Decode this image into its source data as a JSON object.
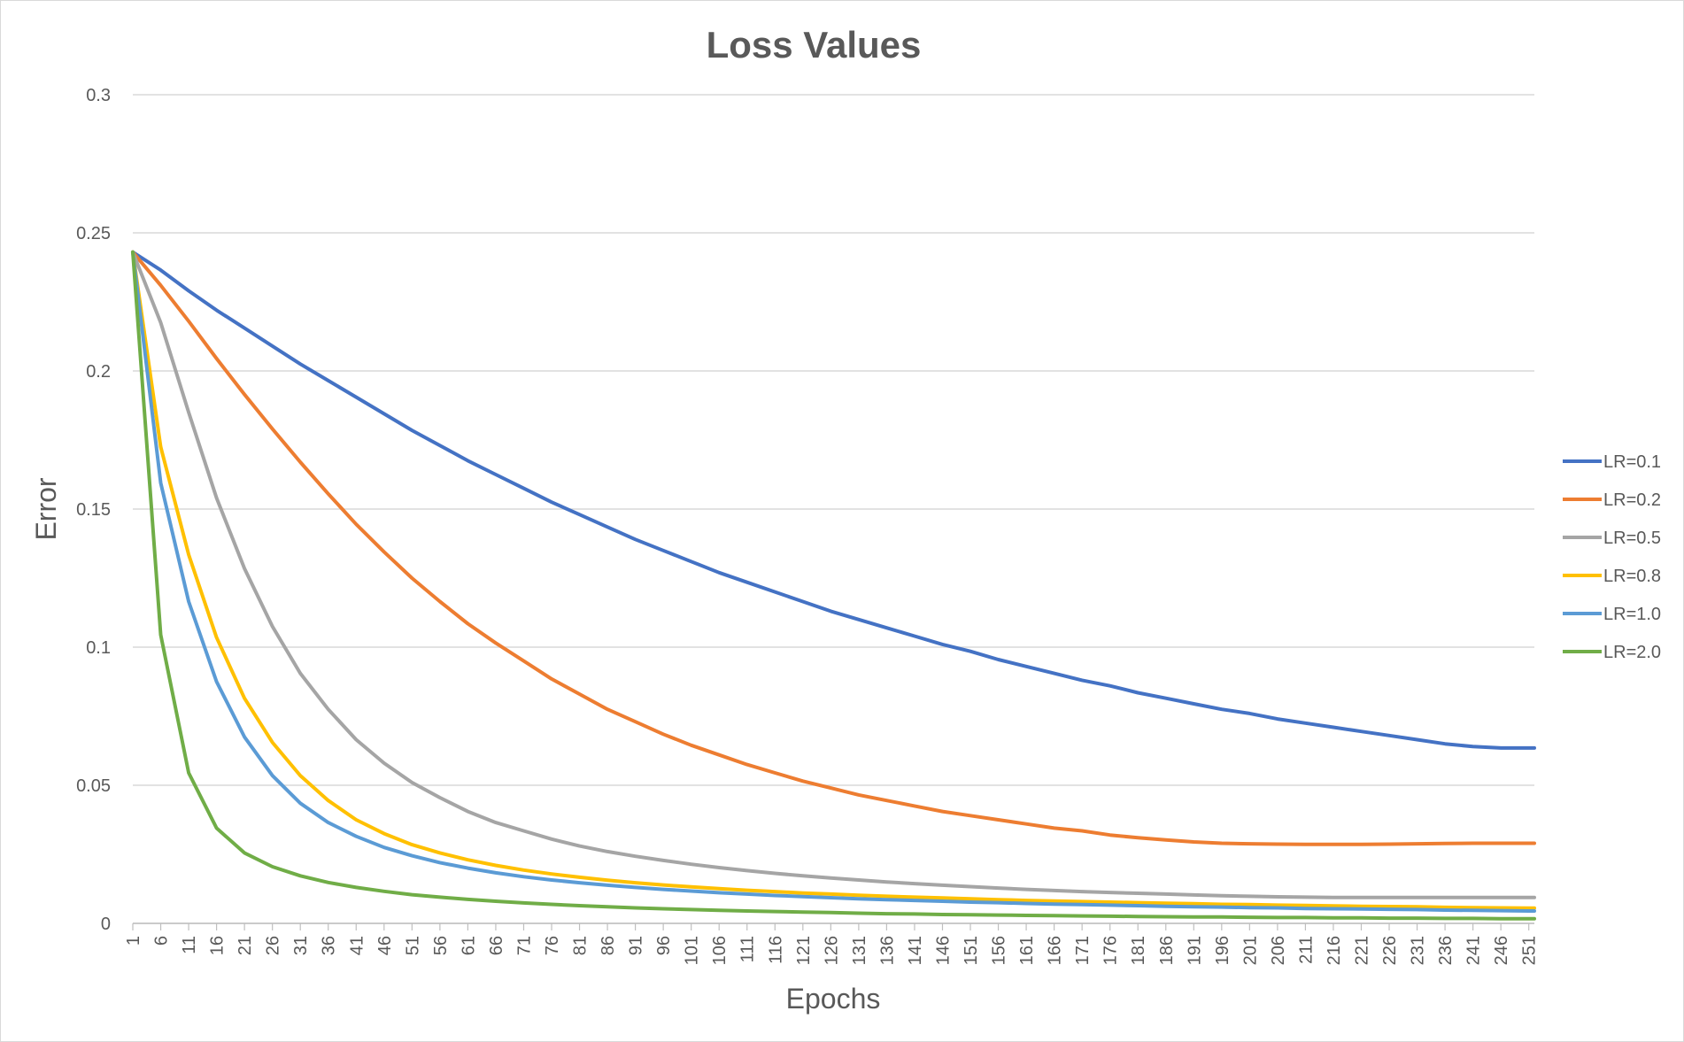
{
  "chart_data": {
    "type": "line",
    "title": "Loss Values",
    "xlabel": "Epochs",
    "ylabel": "Error",
    "ylim": [
      0,
      0.3
    ],
    "yticks": [
      0,
      0.05,
      0.1,
      0.15,
      0.2,
      0.25,
      0.3
    ],
    "ytick_labels": [
      "0",
      "0.05",
      "0.1",
      "0.15",
      "0.2",
      "0.25",
      "0.3"
    ],
    "x_start": 1,
    "x_end": 252,
    "x_tick_step": 5,
    "x_tick_labels": [
      "1",
      "6",
      "11",
      "16",
      "21",
      "26",
      "31",
      "36",
      "41",
      "46",
      "51",
      "56",
      "61",
      "66",
      "71",
      "76",
      "81",
      "86",
      "91",
      "96",
      "101",
      "106",
      "111",
      "116",
      "121",
      "126",
      "131",
      "136",
      "141",
      "146",
      "151",
      "156",
      "161",
      "166",
      "171",
      "176",
      "181",
      "186",
      "191",
      "196",
      "201",
      "206",
      "211",
      "216",
      "221",
      "226",
      "231",
      "236",
      "241",
      "246",
      "251"
    ],
    "grid": "horizontal",
    "legend_position": "right",
    "x": [
      1,
      6,
      11,
      16,
      21,
      26,
      31,
      36,
      41,
      46,
      51,
      56,
      61,
      66,
      71,
      76,
      81,
      86,
      91,
      96,
      101,
      106,
      111,
      116,
      121,
      126,
      131,
      136,
      141,
      146,
      151,
      156,
      161,
      166,
      171,
      176,
      181,
      186,
      191,
      196,
      201,
      206,
      211,
      216,
      221,
      226,
      231,
      236,
      241,
      246,
      251,
      252
    ],
    "series": [
      {
        "name": "LR=0.1",
        "color": "#4472c4",
        "values": [
          0.243,
          0.2365,
          0.229,
          0.222,
          0.2155,
          0.209,
          0.2025,
          0.1965,
          0.1905,
          0.1845,
          0.1785,
          0.173,
          0.1675,
          0.1625,
          0.1575,
          0.1525,
          0.148,
          0.1435,
          0.139,
          0.135,
          0.131,
          0.127,
          0.1235,
          0.12,
          0.1165,
          0.113,
          0.11,
          0.107,
          0.104,
          0.101,
          0.0985,
          0.0955,
          0.093,
          0.0905,
          0.088,
          0.086,
          0.0835,
          0.0815,
          0.0795,
          0.0775,
          0.076,
          0.074,
          0.0725,
          0.071,
          0.0695,
          0.068,
          0.0665,
          0.065,
          0.064,
          0.0635,
          0.0635,
          0.0635
        ]
      },
      {
        "name": "LR=0.2",
        "color": "#ed7d31",
        "values": [
          0.243,
          0.231,
          0.218,
          0.2045,
          0.1915,
          0.179,
          0.167,
          0.1555,
          0.1445,
          0.1345,
          0.125,
          0.1165,
          0.1085,
          0.1015,
          0.095,
          0.0885,
          0.083,
          0.0775,
          0.073,
          0.0685,
          0.0645,
          0.061,
          0.0575,
          0.0545,
          0.0515,
          0.049,
          0.0465,
          0.0445,
          0.0425,
          0.0405,
          0.039,
          0.0375,
          0.036,
          0.0345,
          0.0335,
          0.032,
          0.031,
          0.0302,
          0.0295,
          0.029,
          0.0288,
          0.0287,
          0.0286,
          0.0286,
          0.0286,
          0.0287,
          0.0288,
          0.0289,
          0.029,
          0.029,
          0.029,
          0.029
        ]
      },
      {
        "name": "LR=0.5",
        "color": "#a5a5a5",
        "values": [
          0.243,
          0.2175,
          0.185,
          0.154,
          0.1285,
          0.1075,
          0.0905,
          0.0775,
          0.0665,
          0.058,
          0.051,
          0.0455,
          0.0405,
          0.0365,
          0.0335,
          0.0305,
          0.028,
          0.026,
          0.0243,
          0.0228,
          0.0214,
          0.0202,
          0.0191,
          0.0181,
          0.0172,
          0.0164,
          0.0157,
          0.015,
          0.0144,
          0.0138,
          0.0133,
          0.0128,
          0.0123,
          0.0119,
          0.0115,
          0.0112,
          0.0109,
          0.0106,
          0.0103,
          0.01,
          0.0098,
          0.0096,
          0.0095,
          0.0094,
          0.0094,
          0.0094,
          0.0094,
          0.0094,
          0.0094,
          0.0094,
          0.0094,
          0.0094
        ]
      },
      {
        "name": "LR=0.8",
        "color": "#ffc000",
        "values": [
          0.243,
          0.1725,
          0.1335,
          0.1035,
          0.0815,
          0.0655,
          0.0535,
          0.0445,
          0.0375,
          0.0325,
          0.0285,
          0.0255,
          0.023,
          0.021,
          0.0193,
          0.0179,
          0.0167,
          0.0156,
          0.0147,
          0.0139,
          0.0132,
          0.0126,
          0.012,
          0.0115,
          0.011,
          0.0106,
          0.0102,
          0.0098,
          0.0095,
          0.0092,
          0.0089,
          0.0086,
          0.0083,
          0.0081,
          0.0079,
          0.0077,
          0.0075,
          0.0073,
          0.0071,
          0.0069,
          0.0068,
          0.0066,
          0.0065,
          0.0063,
          0.0062,
          0.0061,
          0.006,
          0.0058,
          0.0057,
          0.0056,
          0.0055,
          0.0055
        ]
      },
      {
        "name": "LR=1.0",
        "color": "#5b9bd5",
        "values": [
          0.243,
          0.1595,
          0.1165,
          0.0875,
          0.0675,
          0.0535,
          0.0435,
          0.0365,
          0.0315,
          0.0275,
          0.0245,
          0.022,
          0.02,
          0.0183,
          0.0169,
          0.0157,
          0.0147,
          0.0138,
          0.013,
          0.0123,
          0.0117,
          0.0111,
          0.0106,
          0.0101,
          0.0097,
          0.0093,
          0.0089,
          0.0086,
          0.0083,
          0.008,
          0.0077,
          0.0075,
          0.0072,
          0.007,
          0.0068,
          0.0066,
          0.0064,
          0.0062,
          0.006,
          0.0059,
          0.0057,
          0.0056,
          0.0054,
          0.0053,
          0.0052,
          0.0051,
          0.005,
          0.0048,
          0.0047,
          0.0046,
          0.0045,
          0.0045
        ]
      },
      {
        "name": "LR=2.0",
        "color": "#70ad47",
        "values": [
          0.243,
          0.1045,
          0.0545,
          0.0345,
          0.0255,
          0.0205,
          0.0172,
          0.0148,
          0.013,
          0.0116,
          0.0104,
          0.0095,
          0.0087,
          0.008,
          0.0074,
          0.0069,
          0.0064,
          0.006,
          0.0056,
          0.0053,
          0.005,
          0.0047,
          0.0045,
          0.0043,
          0.0041,
          0.0039,
          0.0037,
          0.0035,
          0.0034,
          0.0032,
          0.0031,
          0.003,
          0.0029,
          0.0028,
          0.0027,
          0.0026,
          0.0025,
          0.0024,
          0.0023,
          0.0023,
          0.0022,
          0.0021,
          0.0021,
          0.002,
          0.002,
          0.0019,
          0.0019,
          0.0018,
          0.0018,
          0.0017,
          0.0017,
          0.0017
        ]
      }
    ]
  }
}
